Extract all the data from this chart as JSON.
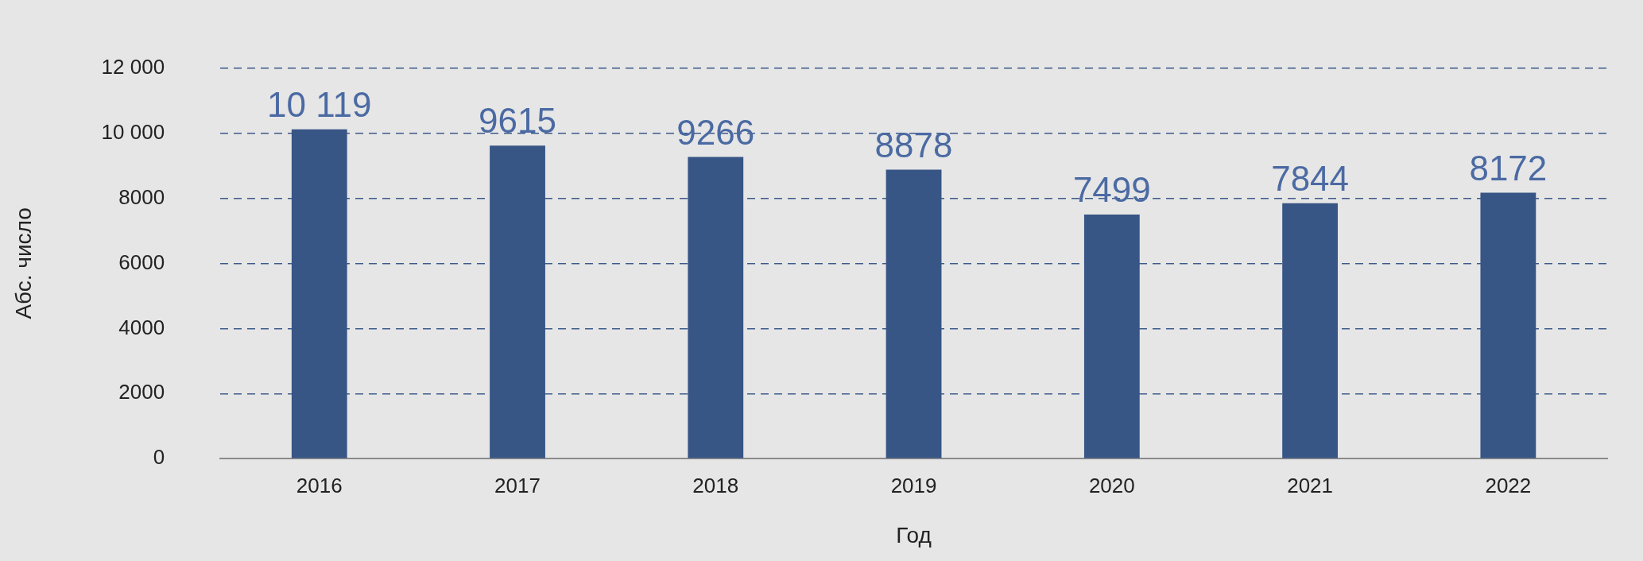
{
  "chart_data": {
    "type": "bar",
    "xlabel": "Год",
    "ylabel": "Абс. число",
    "categories": [
      "2016",
      "2017",
      "2018",
      "2019",
      "2020",
      "2021",
      "2022"
    ],
    "values": [
      10119,
      9615,
      9266,
      8878,
      7499,
      7844,
      8172
    ],
    "value_labels": [
      "10 119",
      "9615",
      "9266",
      "8878",
      "7499",
      "7844",
      "8172"
    ],
    "color": "#375585",
    "ylim": [
      0,
      12000
    ],
    "yticks": [
      0,
      2000,
      4000,
      6000,
      8000,
      {
        "value": 10000,
        "label": "10 000"
      },
      {
        "value": 12000,
        "label": "12 000"
      }
    ],
    "grid": "y",
    "legend": false
  }
}
